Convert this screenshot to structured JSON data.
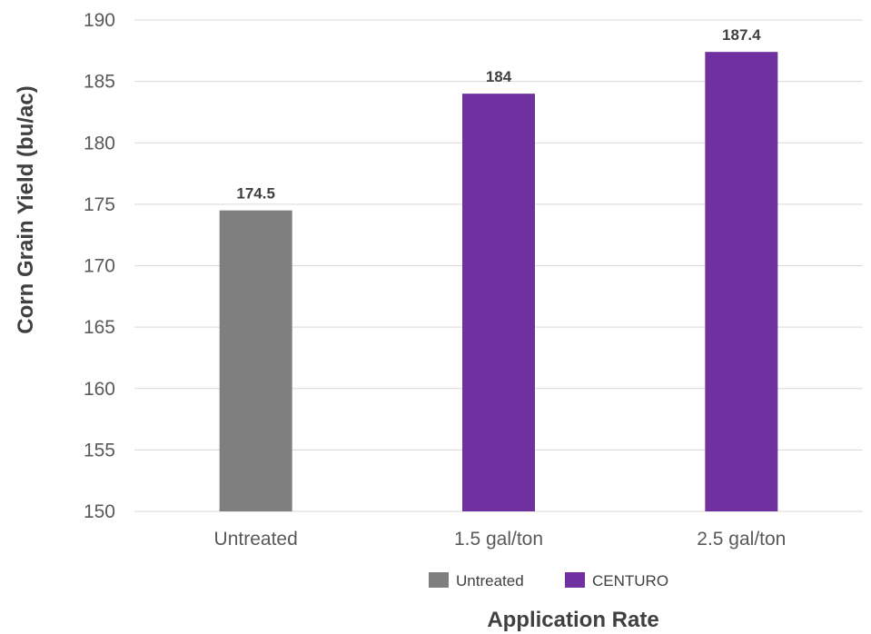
{
  "chart_data": {
    "type": "bar",
    "title": "",
    "xlabel": "Application Rate",
    "ylabel": "Corn Grain Yield (bu/ac)",
    "ylim": [
      150,
      190
    ],
    "ytick_step": 5,
    "yticks": [
      "150",
      "155",
      "160",
      "165",
      "170",
      "175",
      "180",
      "185",
      "190"
    ],
    "grid": true,
    "categories": [
      "Untreated",
      "1.5 gal/ton",
      "2.5 gal/ton"
    ],
    "values": [
      174.5,
      184,
      187.4
    ],
    "data_labels": [
      "174.5",
      "184",
      "187.4"
    ],
    "bar_series": [
      "Untreated",
      "CENTURO",
      "CENTURO"
    ],
    "legend_position": "bottom",
    "series": [
      {
        "name": "Untreated",
        "color": "#7f7f7f"
      },
      {
        "name": "CENTURO",
        "color": "#7030a0"
      }
    ],
    "colors": {
      "grid": "#d9d9d9",
      "axis_text": "#595959",
      "label_text": "#404040"
    }
  }
}
